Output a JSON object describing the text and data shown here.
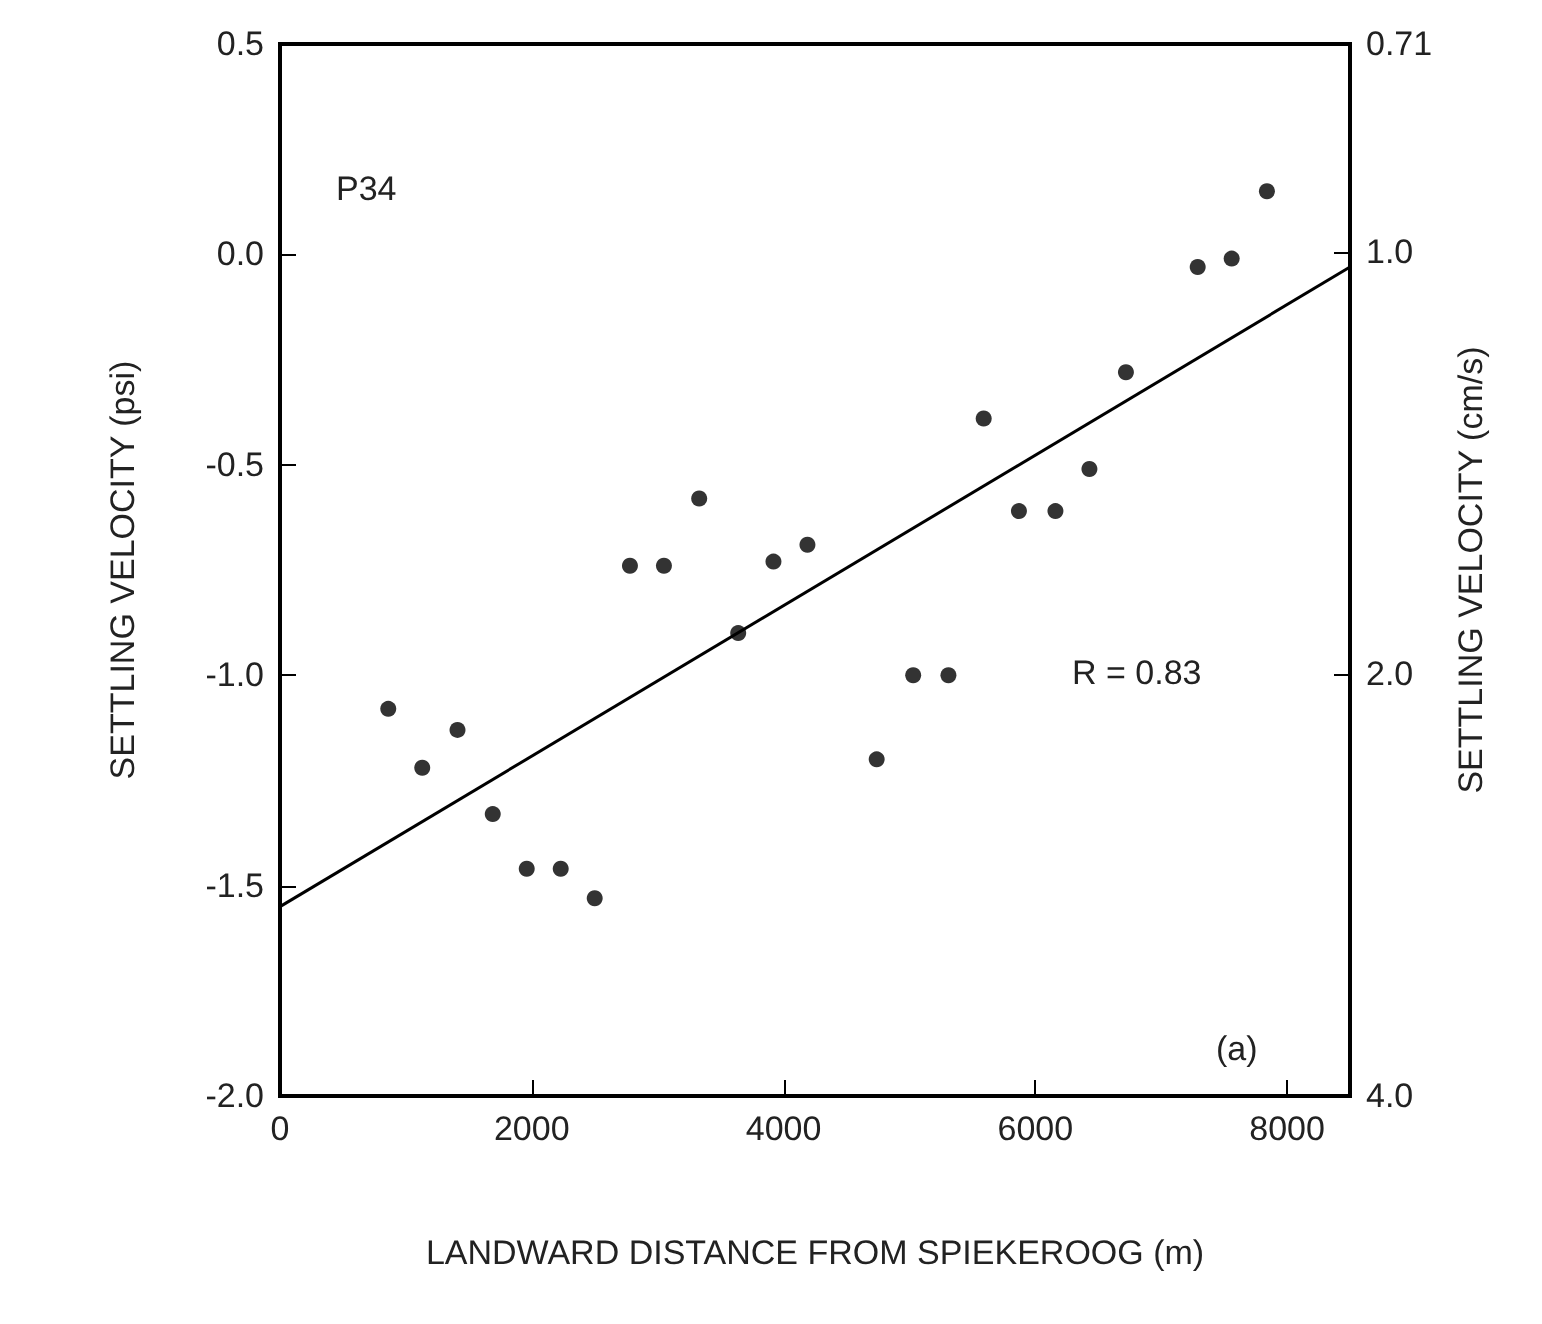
{
  "chart_data": {
    "type": "scatter",
    "xlabel": "LANDWARD DISTANCE FROM SPIEKEROOG (m)",
    "ylabel": "SETTLING VELOCITY (psi)",
    "y2label": "SETTLING VELOCITY (cm/s)",
    "annotations": [
      "P34",
      "R = 0.83",
      "(a)"
    ],
    "series": [
      {
        "color": "#000000",
        "x": [
          860,
          1130,
          1410,
          1690,
          1960,
          2230,
          2500,
          2780,
          3050,
          3330,
          3640,
          3920,
          4190,
          4740,
          5030,
          5310,
          5590,
          5870,
          6160,
          6430,
          6720,
          7290,
          7560,
          7840
        ],
        "values": [
          -1.08,
          -1.22,
          -1.13,
          -1.33,
          -1.46,
          -1.46,
          -1.53,
          -0.74,
          -0.74,
          -0.58,
          -0.9,
          -0.73,
          -0.69,
          -1.2,
          -1.0,
          -1.0,
          -0.39,
          -0.61,
          -0.61,
          -0.51,
          -0.28,
          -0.03,
          -0.01,
          0.15
        ]
      },
      {
        "type": "line",
        "color": "#000000",
        "marker": "none",
        "x": [
          0,
          8500
        ],
        "values": [
          -1.55,
          -0.03
        ]
      }
    ],
    "xlim": [
      0,
      8500
    ],
    "xticks": [
      0,
      2000,
      4000,
      6000,
      8000
    ],
    "ylim": [
      -2,
      0.5
    ],
    "yticks": [
      {
        "value": -2,
        "label": "-2.0"
      },
      -1.5,
      {
        "value": -1,
        "label": "-1.0"
      },
      -0.5,
      {
        "value": 0,
        "label": "0.0"
      },
      0.5
    ],
    "y2lim": [
      4,
      0.71
    ],
    "y2ticks": [
      {
        "value": 4,
        "label": "4.0"
      },
      {
        "value": 2,
        "label": "2.0"
      },
      {
        "value": 1,
        "label": "1.0"
      },
      {
        "value": 0.71,
        "label": "0.71"
      }
    ],
    "log": "y2",
    "grid": false,
    "marker": "circle"
  }
}
